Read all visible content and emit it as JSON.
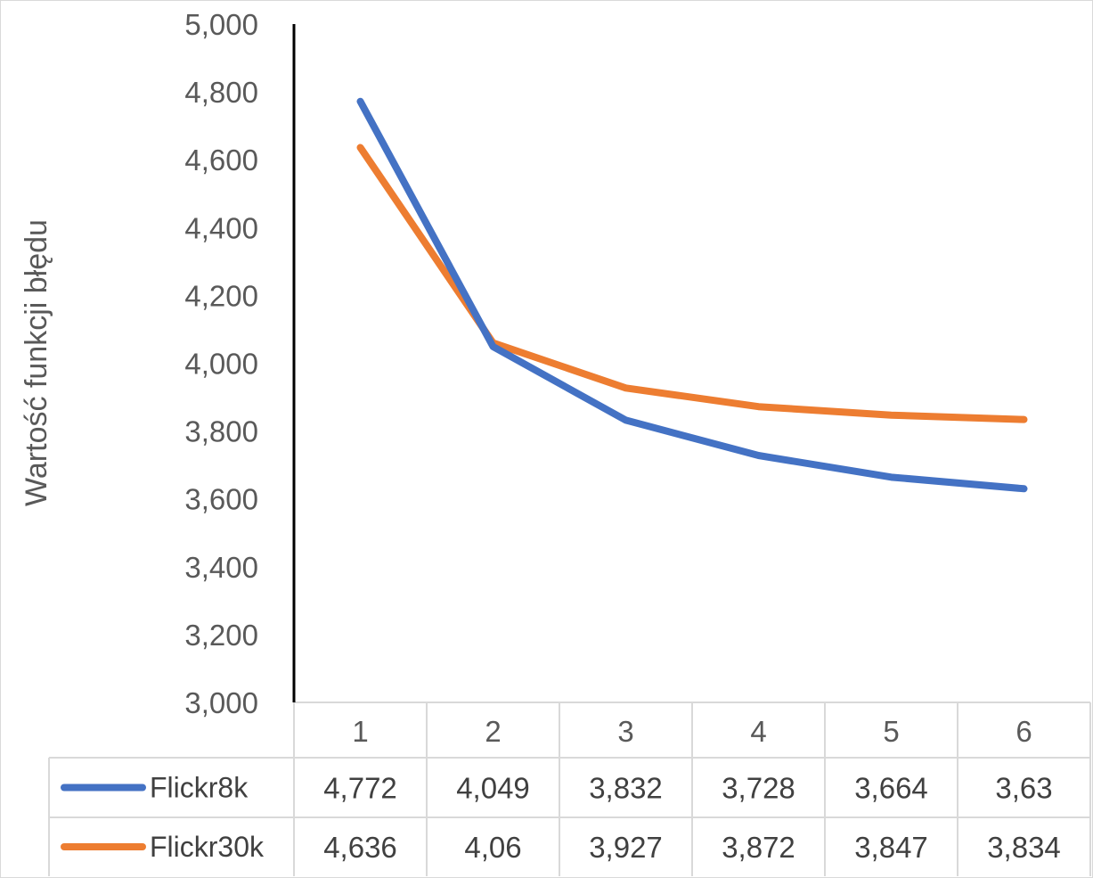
{
  "chart_data": {
    "type": "line",
    "ylabel": "Wartość funkcji błędu",
    "xlabel": "",
    "ylim": [
      3.0,
      5.0
    ],
    "y_ticks": [
      3.0,
      3.2,
      3.4,
      3.6,
      3.8,
      4.0,
      4.2,
      4.4,
      4.6,
      4.8,
      5.0
    ],
    "y_tick_labels": [
      "3,000",
      "3,200",
      "3,400",
      "3,600",
      "3,800",
      "4,000",
      "4,200",
      "4,400",
      "4,600",
      "4,800",
      "5,000"
    ],
    "categories": [
      "1",
      "2",
      "3",
      "4",
      "5",
      "6"
    ],
    "grid": false,
    "legend": "data-table",
    "series": [
      {
        "name": "Flickr8k",
        "color": "#4472c4",
        "values": [
          4.772,
          4.049,
          3.832,
          3.728,
          3.664,
          3.63
        ],
        "labels": [
          "4,772",
          "4,049",
          "3,832",
          "3,728",
          "3,664",
          "3,63"
        ]
      },
      {
        "name": "Flickr30k",
        "color": "#ed7d31",
        "values": [
          4.636,
          4.06,
          3.927,
          3.872,
          3.847,
          3.834
        ],
        "labels": [
          "4,636",
          "4,06",
          "3,927",
          "3,872",
          "3,847",
          "3,834"
        ]
      }
    ]
  }
}
